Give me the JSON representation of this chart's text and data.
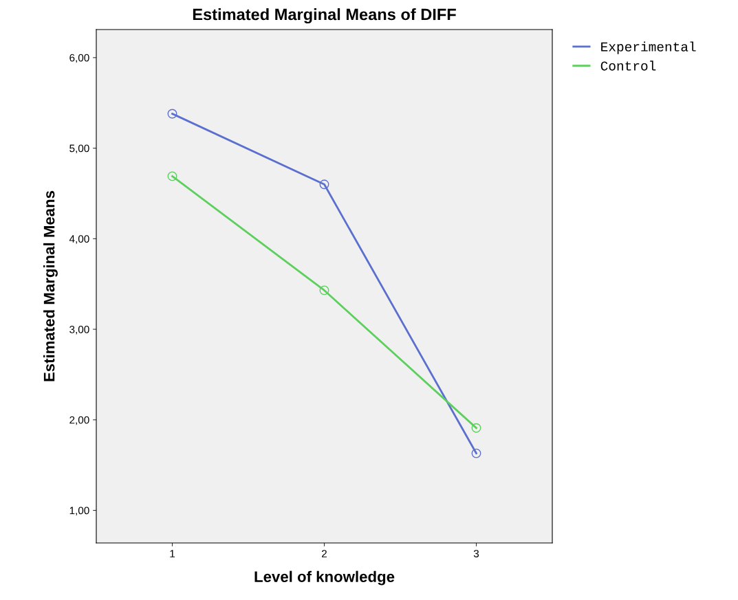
{
  "chart_data": {
    "type": "line",
    "title": "Estimated Marginal Means of DIFF",
    "xlabel": "Level of knowledge",
    "ylabel": "Estimated Marginal Means",
    "categories": [
      "1",
      "2",
      "3"
    ],
    "series": [
      {
        "name": "Experimental",
        "color": "#5b6fcf",
        "values": [
          5.38,
          4.6,
          1.63
        ]
      },
      {
        "name": "Control",
        "color": "#5ccf5c",
        "values": [
          4.69,
          3.43,
          1.91
        ]
      }
    ],
    "ylim": [
      0.64,
      6.31
    ],
    "yticks": [
      {
        "value": 1,
        "label": "1,00"
      },
      {
        "value": 2,
        "label": "2,00"
      },
      {
        "value": 3,
        "label": "3,00"
      },
      {
        "value": 4,
        "label": "4,00"
      },
      {
        "value": 5,
        "label": "5,00"
      },
      {
        "value": 6,
        "label": "6,00"
      }
    ],
    "marker": "circle",
    "line_style": "solid",
    "legend": "top right",
    "grid": false
  }
}
